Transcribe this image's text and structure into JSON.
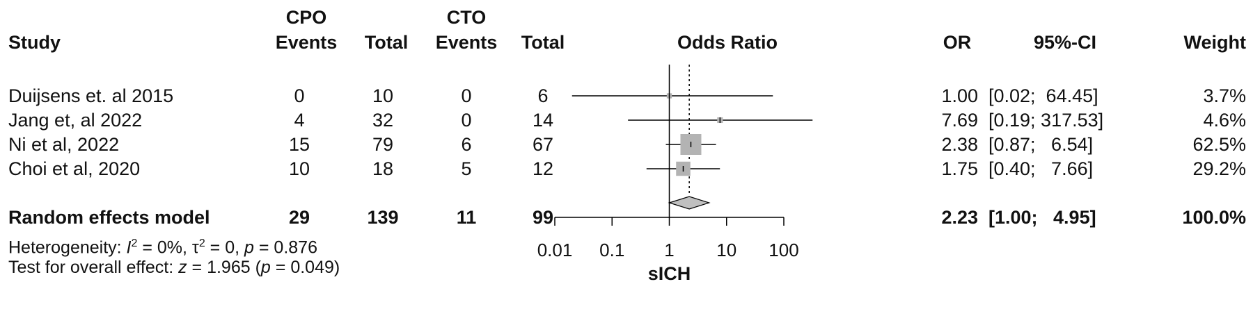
{
  "headers": {
    "study": "Study",
    "cpo": "CPO",
    "cto": "CTO",
    "events1": "Events",
    "total1": "Total",
    "events2": "Events",
    "total2": "Total",
    "odds_ratio": "Odds Ratio",
    "or": "OR",
    "ci": "95%-CI",
    "weight": "Weight"
  },
  "studies": [
    {
      "name": "Duijsens et. al 2015",
      "e1": "0",
      "n1": "10",
      "e2": "0",
      "n2": "6",
      "or": "1.00",
      "ci": "[0.02;  64.45]",
      "weight": "3.7%"
    },
    {
      "name": "Jang et, al 2022",
      "e1": "4",
      "n1": "32",
      "e2": "0",
      "n2": "14",
      "or": "7.69",
      "ci": "[0.19; 317.53]",
      "weight": "4.6%"
    },
    {
      "name": "Ni et al, 2022",
      "e1": "15",
      "n1": "79",
      "e2": "6",
      "n2": "67",
      "or": "2.38",
      "ci": "[0.87;   6.54]",
      "weight": "62.5%"
    },
    {
      "name": "Choi et al, 2020",
      "e1": "10",
      "n1": "18",
      "e2": "5",
      "n2": "12",
      "or": "1.75",
      "ci": "[0.40;   7.66]",
      "weight": "29.2%"
    }
  ],
  "pooled": {
    "name": "Random effects model",
    "e1": "29",
    "n1": "139",
    "e2": "11",
    "n2": "99",
    "or": "2.23",
    "ci": "[1.00;   4.95]",
    "weight": "100.0%"
  },
  "heterogeneity": {
    "prefix": "Heterogeneity: ",
    "i2_sym": "I",
    "i2_sup": "2",
    "i2_val": " = 0%, ",
    "tau_sym": "τ",
    "tau_sup": "2",
    "tau_val": " = 0, ",
    "p_sym": "p",
    "p_val": " = 0.876"
  },
  "overall": {
    "prefix": "Test for overall effect: ",
    "z_sym": "z",
    "z_val": " = 1.965 (",
    "p_sym": "p",
    "p_val": " = 0.049)"
  },
  "chart_data": {
    "type": "forest",
    "xlabel": "sICH",
    "scale": "log",
    "xlim": [
      0.01,
      100
    ],
    "ticks": [
      0.01,
      0.1,
      1,
      10,
      100
    ],
    "tick_labels": [
      "0.01",
      "0.1",
      "1",
      "10",
      "100"
    ],
    "null_line": 1,
    "pooled_line": 2.23,
    "studies": [
      {
        "name": "Duijsens et. al 2015",
        "or": 1.0,
        "lower": 0.02,
        "upper": 64.45,
        "weight": 3.7
      },
      {
        "name": "Jang et, al 2022",
        "or": 7.69,
        "lower": 0.19,
        "upper": 317.53,
        "weight": 4.6
      },
      {
        "name": "Ni et al, 2022",
        "or": 2.38,
        "lower": 0.87,
        "upper": 6.54,
        "weight": 62.5
      },
      {
        "name": "Choi et al, 2020",
        "or": 1.75,
        "lower": 0.4,
        "upper": 7.66,
        "weight": 29.2
      }
    ],
    "pooled": {
      "name": "Random effects model",
      "or": 2.23,
      "lower": 1.0,
      "upper": 4.95,
      "weight": 100.0
    },
    "colors": {
      "box": "#b3b3b3",
      "diamond": "#c0c0c0",
      "line": "#000000"
    }
  }
}
